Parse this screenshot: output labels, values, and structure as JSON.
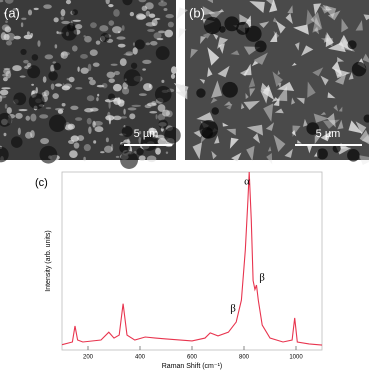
{
  "panels": [
    {
      "label": "(a)",
      "scale_bar": "5 µm"
    },
    {
      "label": "(b)",
      "scale_bar": "5 µm"
    }
  ],
  "chart_data": {
    "type": "line",
    "panel_label": "(c)",
    "x_label": "Raman Shift (cm⁻¹)",
    "y_label": "Intensity (arb. units)",
    "x": [
      100,
      140,
      150,
      160,
      180,
      250,
      280,
      300,
      320,
      335,
      350,
      380,
      420,
      460,
      500,
      600,
      650,
      670,
      700,
      740,
      770,
      790,
      805,
      815,
      820,
      828,
      835,
      842,
      848,
      855,
      870,
      900,
      950,
      985,
      995,
      1005,
      1050,
      1100
    ],
    "series": [
      {
        "color": "#e8344e",
        "values": [
          3,
          4.5,
          13.5,
          5.6,
          4.5,
          5.6,
          10,
          6.7,
          8.4,
          26,
          8.4,
          5.6,
          7.3,
          6.7,
          6.2,
          5.1,
          6.7,
          9.6,
          7.9,
          10,
          15.7,
          28,
          56,
          84,
          100,
          73,
          39,
          34,
          36.5,
          28,
          14,
          6.7,
          4.5,
          5.6,
          18,
          4.5,
          3.4,
          2.8
        ]
      }
    ],
    "xlim": [
      100,
      1100
    ],
    "ylim": [
      0,
      100
    ],
    "xticks": [
      200,
      400,
      600,
      800,
      1000
    ],
    "annotations": [
      "α",
      "β",
      "β"
    ]
  }
}
